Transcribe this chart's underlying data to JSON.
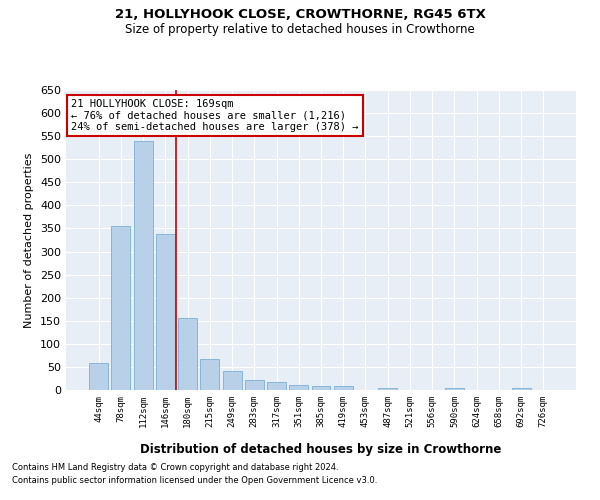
{
  "title": "21, HOLLYHOOK CLOSE, CROWTHORNE, RG45 6TX",
  "subtitle": "Size of property relative to detached houses in Crowthorne",
  "xlabel": "Distribution of detached houses by size in Crowthorne",
  "ylabel": "Number of detached properties",
  "categories": [
    "44sqm",
    "78sqm",
    "112sqm",
    "146sqm",
    "180sqm",
    "215sqm",
    "249sqm",
    "283sqm",
    "317sqm",
    "351sqm",
    "385sqm",
    "419sqm",
    "453sqm",
    "487sqm",
    "521sqm",
    "556sqm",
    "590sqm",
    "624sqm",
    "658sqm",
    "692sqm",
    "726sqm"
  ],
  "values": [
    58,
    355,
    540,
    338,
    155,
    68,
    42,
    22,
    18,
    11,
    8,
    8,
    0,
    5,
    0,
    0,
    5,
    0,
    0,
    5,
    0
  ],
  "bar_color": "#b8d0e8",
  "bar_edge_color": "#7bafd4",
  "vline_x": 3.5,
  "vline_color": "#cc0000",
  "annotation_text": "21 HOLLYHOOK CLOSE: 169sqm\n← 76% of detached houses are smaller (1,216)\n24% of semi-detached houses are larger (378) →",
  "annotation_box_color": "#ffffff",
  "annotation_box_edge_color": "#cc0000",
  "ylim": [
    0,
    650
  ],
  "yticks": [
    0,
    50,
    100,
    150,
    200,
    250,
    300,
    350,
    400,
    450,
    500,
    550,
    600,
    650
  ],
  "bg_color": "#e8eef5",
  "grid_color": "#ffffff",
  "footer_line1": "Contains HM Land Registry data © Crown copyright and database right 2024.",
  "footer_line2": "Contains public sector information licensed under the Open Government Licence v3.0."
}
